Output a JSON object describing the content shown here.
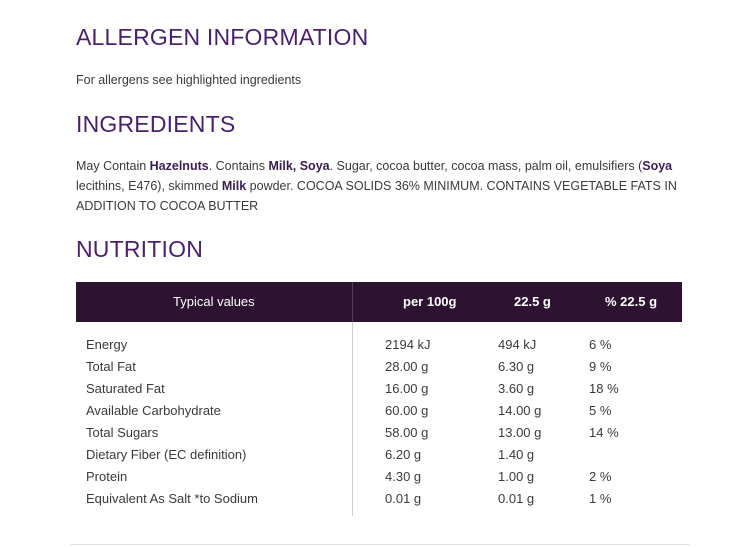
{
  "allergen": {
    "heading": "ALLERGEN INFORMATION",
    "text": "For allergens see highlighted ingredients"
  },
  "ingredients": {
    "heading": "INGREDIENTS",
    "segments": [
      {
        "text": "May Contain ",
        "bold": false
      },
      {
        "text": "Hazelnuts",
        "bold": true
      },
      {
        "text": ". Contains ",
        "bold": false
      },
      {
        "text": "Milk, Soya",
        "bold": true
      },
      {
        "text": ". Sugar, cocoa butter, cocoa mass, palm oil, emulsifiers (",
        "bold": false
      },
      {
        "text": "Soya",
        "bold": true
      },
      {
        "text": " lecithins, E476), skimmed ",
        "bold": false
      },
      {
        "text": "Milk",
        "bold": true
      },
      {
        "text": " powder. COCOA SOLIDS 36% MINIMUM. CONTAINS VEGETABLE FATS IN ADDITION TO COCOA BUTTER",
        "bold": false
      }
    ]
  },
  "nutrition": {
    "heading": "NUTRITION",
    "headers": [
      "Typical values",
      "per 100g",
      "22.5 g",
      "% 22.5 g"
    ],
    "rows": [
      [
        "Energy",
        "2194 kJ",
        "494 kJ",
        "6 %"
      ],
      [
        "Total Fat",
        "28.00 g",
        "6.30 g",
        "9 %"
      ],
      [
        "Saturated Fat",
        "16.00 g",
        "3.60 g",
        "18 %"
      ],
      [
        "Available Carbohydrate",
        "60.00 g",
        "14.00 g",
        "5 %"
      ],
      [
        "Total Sugars",
        "58.00 g",
        "13.00 g",
        "14 %"
      ],
      [
        "Dietary Fiber (EC definition)",
        "6.20 g",
        "1.40 g",
        ""
      ],
      [
        "Protein",
        "4.30 g",
        "1.00 g",
        "2 %"
      ],
      [
        "Equivalent As Salt *to Sodium",
        "0.01 g",
        "0.01 g",
        "1 %"
      ]
    ]
  }
}
